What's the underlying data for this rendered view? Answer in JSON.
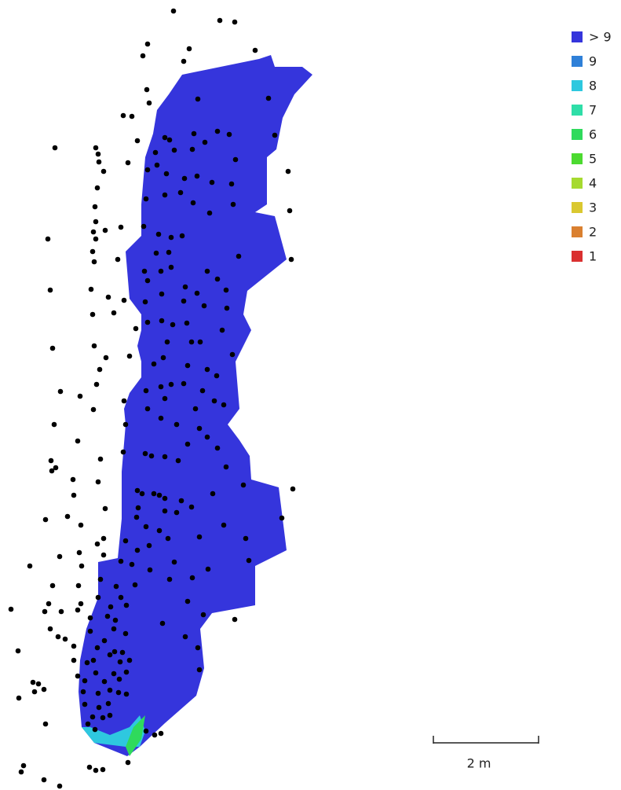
{
  "legend": [
    {
      "label": "> 9",
      "color": "#3535dc"
    },
    {
      "label": "9",
      "color": "#2f80d8"
    },
    {
      "label": "8",
      "color": "#2ec8df"
    },
    {
      "label": "7",
      "color": "#2fdea8"
    },
    {
      "label": "6",
      "color": "#2fda5c"
    },
    {
      "label": "5",
      "color": "#4cda30"
    },
    {
      "label": "4",
      "color": "#a6da30"
    },
    {
      "label": "3",
      "color": "#dac830"
    },
    {
      "label": "2",
      "color": "#da8030"
    },
    {
      "label": "1",
      "color": "#da3030"
    }
  ],
  "scale_bar": {
    "label": "2 m"
  }
}
